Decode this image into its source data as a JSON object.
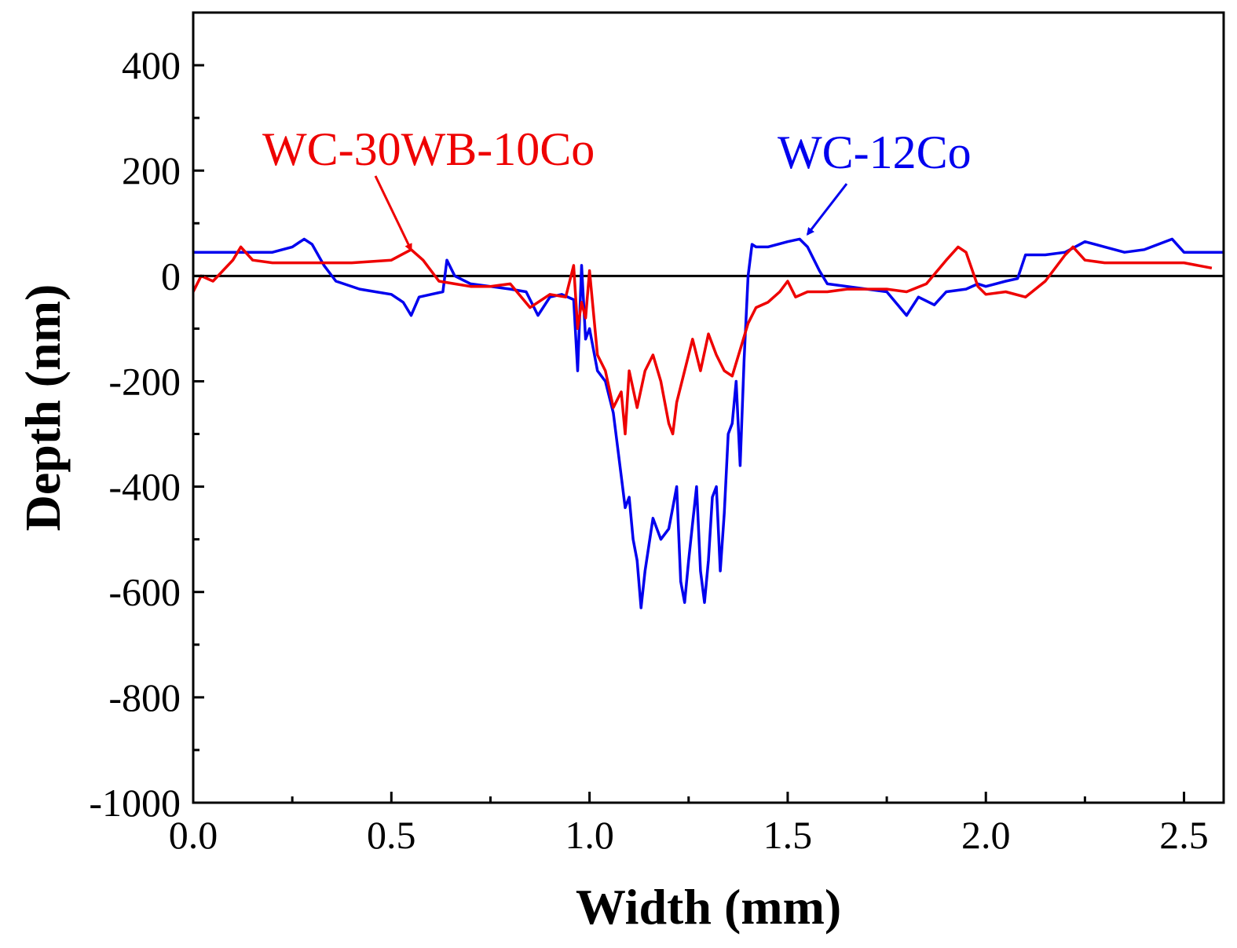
{
  "chart_data": {
    "type": "line",
    "xlabel": "Width (mm)",
    "ylabel": "Depth (nm)",
    "xlim": [
      0,
      2.6
    ],
    "ylim": [
      -1000,
      500
    ],
    "x_ticks": [
      "0.0",
      "0.5",
      "1.0",
      "1.5",
      "2.0",
      "2.5"
    ],
    "y_ticks": [
      "400",
      "200",
      "0",
      "-200",
      "-400",
      "-600",
      "-800",
      "-1000"
    ],
    "x_tick_values": [
      0,
      0.5,
      1.0,
      1.5,
      2.0,
      2.5
    ],
    "y_tick_values": [
      400,
      200,
      0,
      -200,
      -400,
      -600,
      -800,
      -1000
    ],
    "zero_line": true,
    "grid": false,
    "legend": "none",
    "series": [
      {
        "name": "WC-12Co",
        "color": "#0000ee",
        "x": [
          0.0,
          0.15,
          0.2,
          0.25,
          0.28,
          0.3,
          0.33,
          0.36,
          0.38,
          0.42,
          0.46,
          0.5,
          0.53,
          0.55,
          0.57,
          0.6,
          0.63,
          0.64,
          0.66,
          0.7,
          0.75,
          0.8,
          0.84,
          0.87,
          0.9,
          0.93,
          0.96,
          0.97,
          0.98,
          0.99,
          1.0,
          1.02,
          1.04,
          1.06,
          1.08,
          1.09,
          1.1,
          1.11,
          1.12,
          1.13,
          1.14,
          1.16,
          1.18,
          1.2,
          1.21,
          1.22,
          1.23,
          1.24,
          1.25,
          1.26,
          1.27,
          1.28,
          1.29,
          1.3,
          1.31,
          1.32,
          1.33,
          1.34,
          1.35,
          1.36,
          1.37,
          1.38,
          1.39,
          1.4,
          1.41,
          1.42,
          1.45,
          1.5,
          1.53,
          1.55,
          1.58,
          1.6,
          1.65,
          1.7,
          1.75,
          1.8,
          1.83,
          1.87,
          1.9,
          1.95,
          1.98,
          2.0,
          2.05,
          2.08,
          2.1,
          2.15,
          2.2,
          2.25,
          2.3,
          2.35,
          2.4,
          2.47,
          2.5,
          2.6
        ],
        "y": [
          45,
          45,
          45,
          55,
          70,
          60,
          20,
          -10,
          -15,
          -25,
          -30,
          -35,
          -50,
          -75,
          -40,
          -35,
          -30,
          30,
          0,
          -15,
          -20,
          -25,
          -30,
          -75,
          -40,
          -35,
          -45,
          -180,
          20,
          -120,
          -100,
          -180,
          -200,
          -260,
          -380,
          -440,
          -420,
          -500,
          -540,
          -630,
          -560,
          -460,
          -500,
          -480,
          -440,
          -400,
          -580,
          -620,
          -540,
          -470,
          -400,
          -560,
          -620,
          -540,
          -420,
          -400,
          -560,
          -450,
          -300,
          -280,
          -200,
          -360,
          -160,
          0,
          60,
          55,
          55,
          65,
          70,
          55,
          10,
          -15,
          -20,
          -25,
          -30,
          -75,
          -40,
          -55,
          -30,
          -25,
          -15,
          -20,
          -10,
          -5,
          40,
          40,
          45,
          65,
          55,
          45,
          50,
          70,
          45,
          45
        ]
      },
      {
        "name": "WC-30WB-10Co",
        "color": "#ee0000",
        "x": [
          0.0,
          0.02,
          0.05,
          0.1,
          0.12,
          0.15,
          0.2,
          0.3,
          0.4,
          0.5,
          0.55,
          0.58,
          0.62,
          0.66,
          0.7,
          0.75,
          0.8,
          0.85,
          0.9,
          0.94,
          0.96,
          0.97,
          0.98,
          0.99,
          1.0,
          1.02,
          1.04,
          1.06,
          1.08,
          1.09,
          1.1,
          1.12,
          1.14,
          1.16,
          1.18,
          1.2,
          1.21,
          1.22,
          1.24,
          1.26,
          1.28,
          1.3,
          1.32,
          1.34,
          1.36,
          1.38,
          1.4,
          1.42,
          1.45,
          1.48,
          1.5,
          1.52,
          1.55,
          1.6,
          1.65,
          1.7,
          1.75,
          1.8,
          1.85,
          1.9,
          1.93,
          1.95,
          1.98,
          2.0,
          2.05,
          2.1,
          2.15,
          2.2,
          2.22,
          2.25,
          2.3,
          2.4,
          2.5,
          2.57
        ],
        "y": [
          -30,
          0,
          -10,
          30,
          55,
          30,
          25,
          25,
          25,
          30,
          50,
          30,
          -10,
          -15,
          -20,
          -20,
          -15,
          -60,
          -35,
          -40,
          20,
          -100,
          -50,
          -80,
          10,
          -150,
          -180,
          -250,
          -220,
          -300,
          -180,
          -250,
          -180,
          -150,
          -200,
          -280,
          -300,
          -240,
          -180,
          -120,
          -180,
          -110,
          -150,
          -180,
          -190,
          -140,
          -90,
          -60,
          -50,
          -30,
          -10,
          -40,
          -30,
          -30,
          -25,
          -25,
          -25,
          -30,
          -15,
          30,
          55,
          45,
          -20,
          -35,
          -30,
          -40,
          -10,
          40,
          55,
          30,
          25,
          25,
          25,
          15
        ]
      }
    ],
    "annotations": [
      {
        "text": "WC-30WB-10Co",
        "color": "#ee0000",
        "points_to_series": "WC-30WB-10Co",
        "target": [
          0.55,
          40
        ]
      },
      {
        "text": "WC-12Co",
        "color": "#0000ee",
        "points_to_series": "WC-12Co",
        "target": [
          1.55,
          70
        ]
      }
    ]
  }
}
